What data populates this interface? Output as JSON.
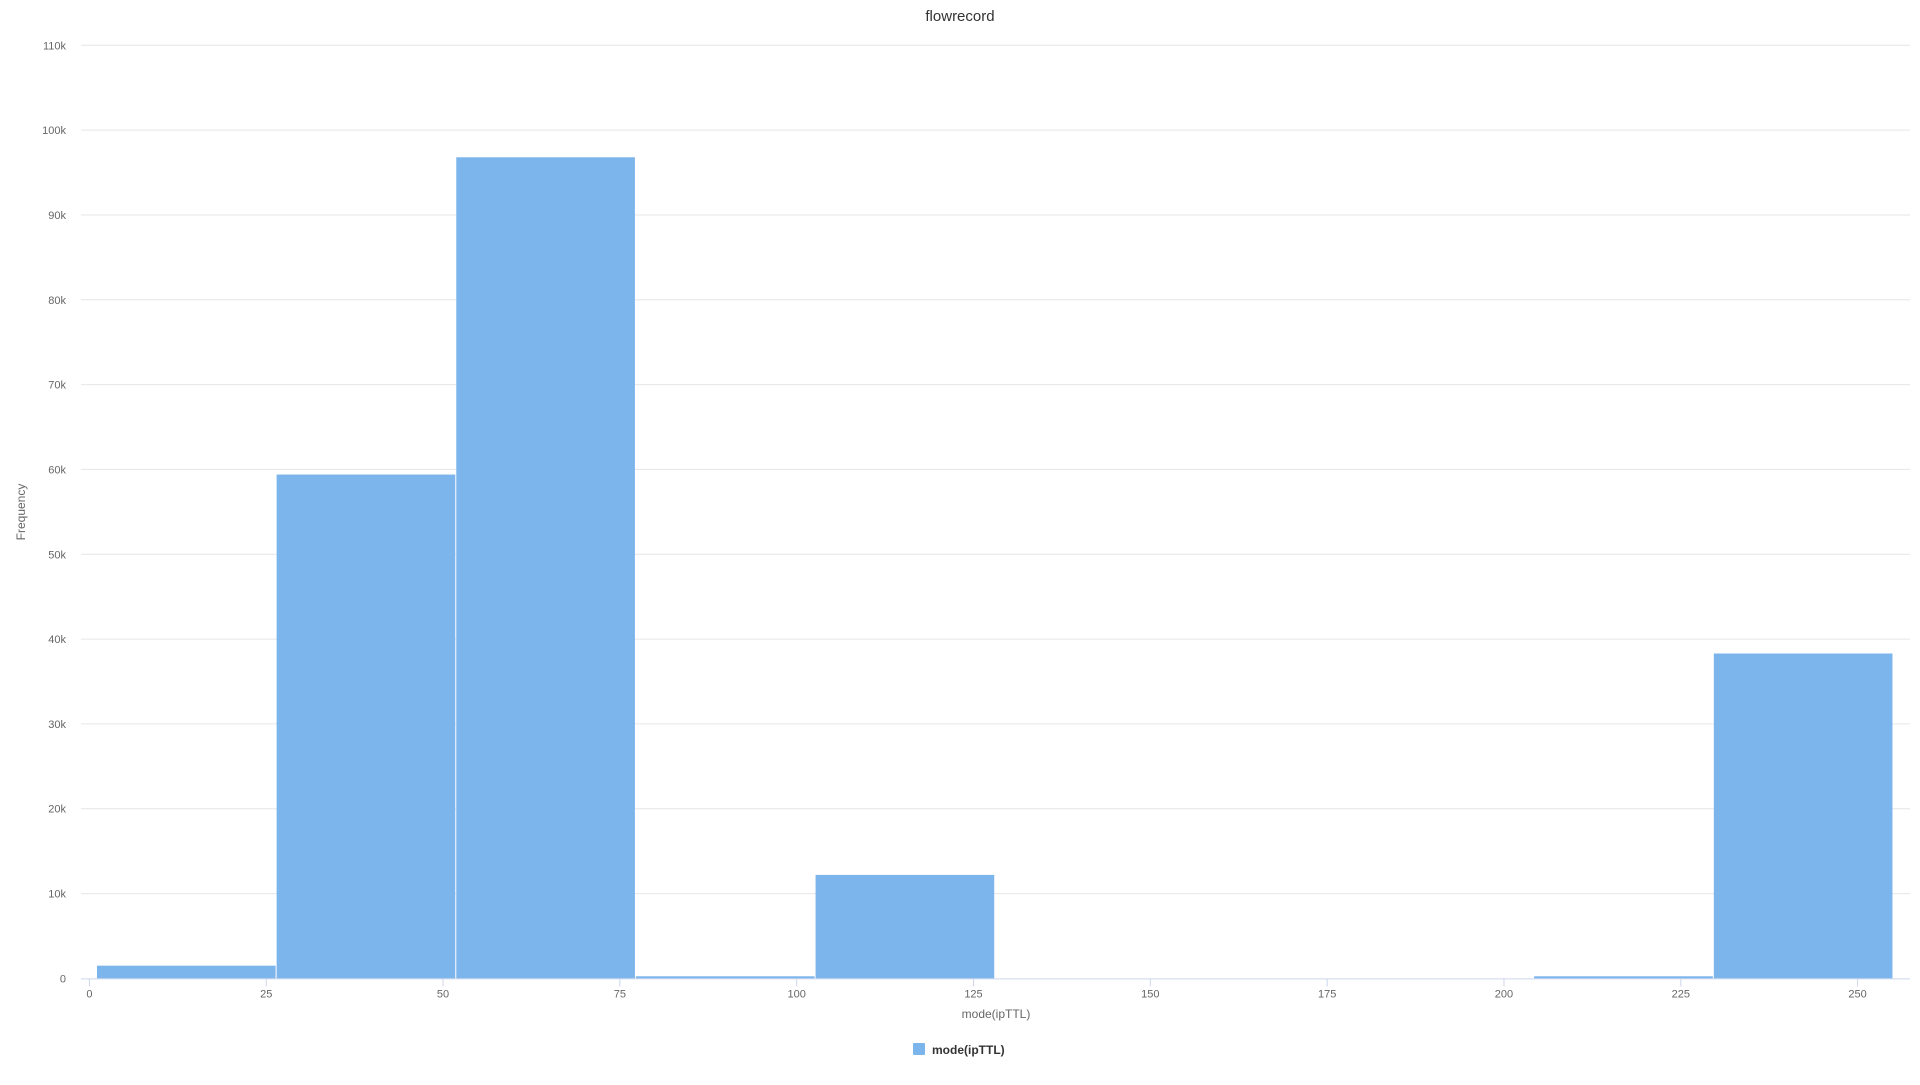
{
  "chart_data": {
    "type": "bar",
    "subtype": "histogram",
    "title": "flowrecord",
    "xlabel": "mode(ipTTL)",
    "ylabel": "Frequency",
    "xlim": [
      0,
      255
    ],
    "ylim": [
      0,
      110000
    ],
    "x_ticks": [
      0,
      25,
      50,
      75,
      100,
      125,
      150,
      175,
      200,
      225,
      250
    ],
    "y_ticks": [
      0,
      10000,
      20000,
      30000,
      40000,
      50000,
      60000,
      70000,
      80000,
      90000,
      100000,
      110000
    ],
    "y_tick_labels": [
      "0",
      "10k",
      "20k",
      "30k",
      "40k",
      "50k",
      "60k",
      "70k",
      "80k",
      "90k",
      "100k",
      "110k"
    ],
    "grid": true,
    "legend_position": "bottom-center",
    "bin_edges": [
      1,
      26.4,
      51.8,
      77.2,
      102.6,
      128,
      153.4,
      178.8,
      204.2,
      229.6,
      255
    ],
    "series": [
      {
        "name": "mode(ipTTL)",
        "color": "#7cb5ec",
        "values": [
          1500,
          59400,
          96800,
          250,
          12200,
          0,
          0,
          0,
          250,
          38300
        ]
      }
    ]
  }
}
